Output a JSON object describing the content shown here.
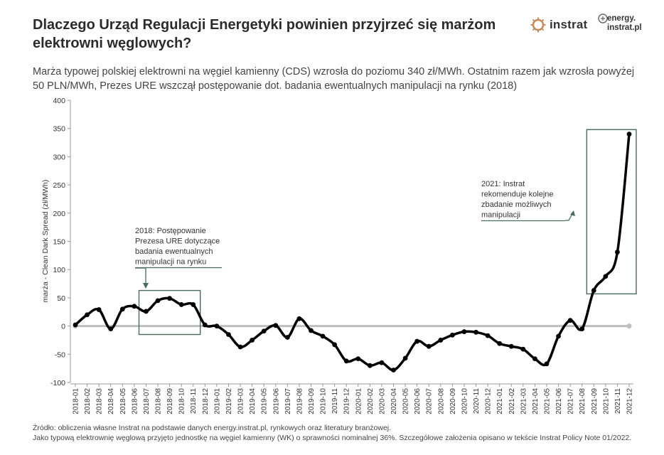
{
  "header": {
    "title": "Dlaczego Urząd Regulacji Energetyki powinien przyjrzeć się marżom elektrowni węglowych?",
    "subtitle": "Marża typowej polskiej elektrowni na węgiel kamienny (CDS) wzrosła do poziomu 340 zł/MWh. Ostatnim razem jak wzrosła powyżej 50 PLN/MWh, Prezes URE wszczął postępowanie dot. badania ewentualnych manipulacji na rynku (2018)"
  },
  "logos": {
    "instrat": "instrat",
    "energy_line1": "energy.",
    "energy_line2": "instrat.pl"
  },
  "footer": {
    "source_line1": "Źródło: obliczenia własne Instrat na podstawie danych energy.instrat.pl, rynkowych oraz literatury branżowej.",
    "source_line2": "Jako typową elektrownię węglową przyjęto jednostkę na węgiel kamienny (WK) o sprawności nominalnej 36%. Szczegółowe założenia opisano w tekście Instrat Policy Note 01/2022."
  },
  "colors": {
    "line": "#000000",
    "zero_line": "#bfbfbf",
    "box": "#4a6b5a",
    "logo_accent": "#c98a5a"
  },
  "chart_data": {
    "type": "line",
    "ylabel": "marża - Clean Dark Spread (zł/MWh)",
    "xlabel": "",
    "ylim": [
      -100,
      400
    ],
    "yticks": [
      -100,
      -50,
      0,
      50,
      100,
      150,
      200,
      250,
      300,
      350,
      400
    ],
    "grid": false,
    "categories": [
      "2018-01",
      "2018-02",
      "2018-03",
      "2018-04",
      "2018-05",
      "2018-06",
      "2018-07",
      "2018-08",
      "2018-09",
      "2018-10",
      "2018-11",
      "2018-12",
      "2019-01",
      "2019-02",
      "2019-03",
      "2019-04",
      "2019-05",
      "2019-06",
      "2019-07",
      "2019-08",
      "2019-09",
      "2019-10",
      "2019-11",
      "2019-12",
      "2020-01",
      "2020-02",
      "2020-03",
      "2020-04",
      "2020-05",
      "2020-06",
      "2020-07",
      "2020-08",
      "2020-09",
      "2020-10",
      "2020-11",
      "2020-12",
      "2021-01",
      "2021-02",
      "2021-03",
      "2021-04",
      "2021-05",
      "2021-06",
      "2021-07",
      "2021-08",
      "2021-09",
      "2021-10",
      "2021-11",
      "2021-12"
    ],
    "values": [
      2,
      20,
      29,
      -5,
      30,
      35,
      26,
      45,
      49,
      38,
      38,
      2,
      0,
      -15,
      -37,
      -25,
      -9,
      1,
      -20,
      13,
      -8,
      -18,
      -33,
      -62,
      -58,
      -70,
      -65,
      -78,
      -57,
      -27,
      -36,
      -25,
      -16,
      -10,
      -11,
      -17,
      -31,
      -36,
      -41,
      -58,
      -67,
      -18,
      10,
      -5,
      63,
      88,
      131,
      340
    ],
    "annotations": [
      {
        "text_lines": [
          "2018: Postępowanie",
          "Prezesa URE dotyczące",
          "badania ewentualnych",
          "manipulacji na rynku"
        ]
      },
      {
        "text_lines": [
          "2021: Instrat",
          "rekomenduje kolejne",
          "zbadanie możliwych",
          "manipulacji"
        ]
      }
    ]
  }
}
